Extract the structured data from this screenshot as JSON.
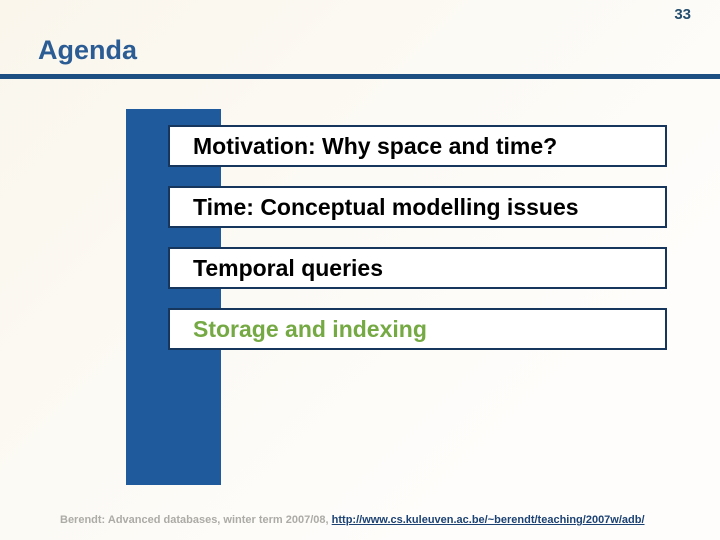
{
  "slide": {
    "page_number": "33",
    "title": "Agenda"
  },
  "agenda": {
    "items": [
      {
        "label": "Motivation: Why space and time?",
        "current": false
      },
      {
        "label": "Time: Conceptual modelling issues",
        "current": false
      },
      {
        "label": "Temporal queries",
        "current": false
      },
      {
        "label": "Storage and indexing",
        "current": true
      }
    ]
  },
  "footer": {
    "prefix": "Berendt: Advanced databases, winter term 2007/08, ",
    "link": "http://www.cs.kuleuven.ac.be/~berendt/teaching/2007w/adb/"
  },
  "colors": {
    "background": "#FAF6EC",
    "background_fade": "#FEFDFB",
    "title": "#2B5C94",
    "page_number": "#254E6E",
    "rule": "#1E4F82",
    "sidebar_bar": "#1F5A9D",
    "box_border": "#17365D",
    "item_text": "#000000",
    "highlight_item": "#74A943",
    "footer_text": "#ACABA6",
    "link": "#1C4273"
  }
}
